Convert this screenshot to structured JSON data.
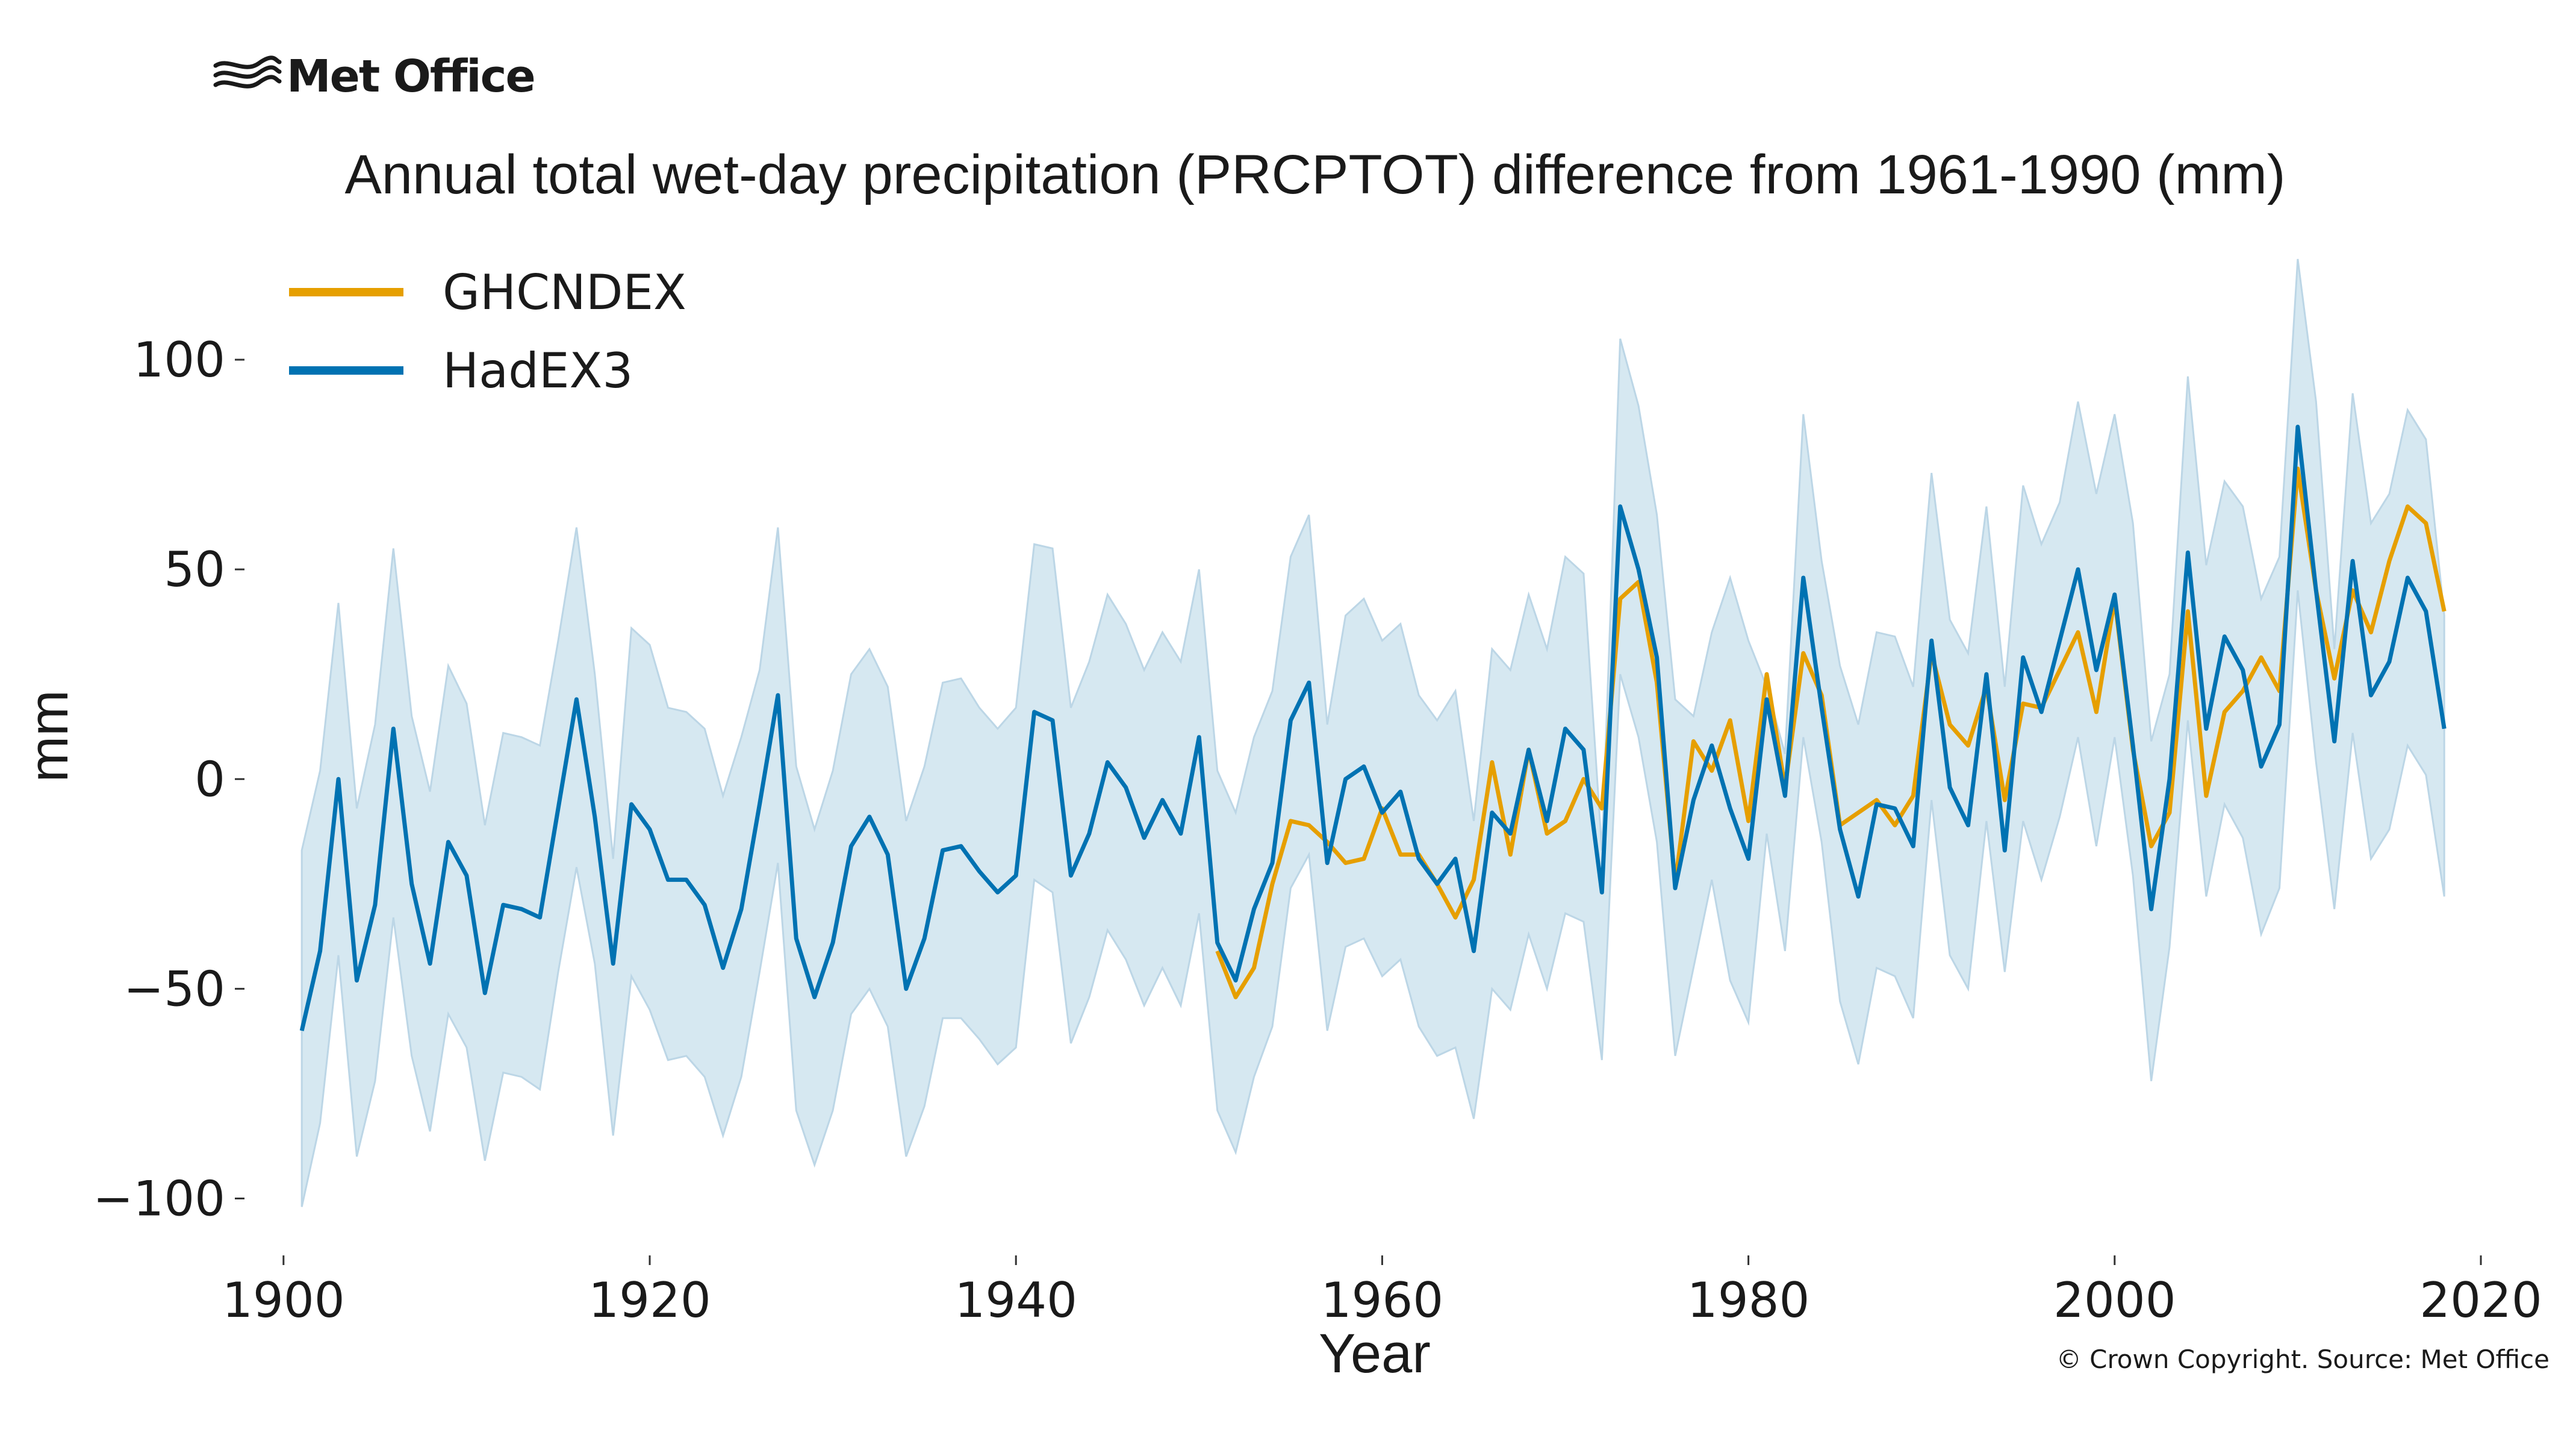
{
  "brand": {
    "name": "Met Office",
    "logo_icon": "met-office-waves-icon"
  },
  "copyright": "© Crown Copyright. Source: Met Office",
  "colors": {
    "ghcndex": "#e69f00",
    "hadex3": "#0072b2",
    "band": "#d6e8f1",
    "band_edge": "#bcd6e6"
  },
  "chart_data": {
    "type": "line",
    "title": "Annual total wet-day precipitation (PRCPTOT) difference from 1961-1990 (mm)",
    "xlabel": "Year",
    "ylabel": "mm",
    "xlim": [
      1898,
      2020
    ],
    "ylim": [
      -113,
      124
    ],
    "xticks": [
      1900,
      1920,
      1940,
      1960,
      1980,
      2000,
      2020
    ],
    "xtick_labels": [
      "1900",
      "1920",
      "1940",
      "1960",
      "1980",
      "2000",
      "2020"
    ],
    "yticks": [
      100,
      50,
      0,
      -50,
      -100
    ],
    "ytick_labels": [
      "100",
      "50",
      "0",
      "−50",
      "−100"
    ],
    "legend_position": "top-left",
    "grid": false,
    "uncertainty_band": {
      "series": "HadEX3",
      "x": [
        1901,
        1902,
        1903,
        1904,
        1905,
        1906,
        1907,
        1908,
        1909,
        1910,
        1911,
        1912,
        1913,
        1914,
        1915,
        1916,
        1917,
        1918,
        1919,
        1920,
        1921,
        1922,
        1923,
        1924,
        1925,
        1926,
        1927,
        1928,
        1929,
        1930,
        1931,
        1932,
        1933,
        1934,
        1935,
        1936,
        1937,
        1938,
        1939,
        1940,
        1941,
        1942,
        1943,
        1944,
        1945,
        1946,
        1947,
        1948,
        1949,
        1950,
        1951,
        1952,
        1953,
        1954,
        1955,
        1956,
        1957,
        1958,
        1959,
        1960,
        1961,
        1962,
        1963,
        1964,
        1965,
        1966,
        1967,
        1968,
        1969,
        1970,
        1971,
        1972,
        1973,
        1974,
        1975,
        1976,
        1977,
        1978,
        1979,
        1980,
        1981,
        1982,
        1983,
        1984,
        1985,
        1986,
        1987,
        1988,
        1989,
        1990,
        1991,
        1992,
        1993,
        1994,
        1995,
        1996,
        1997,
        1998,
        1999,
        2000,
        2001,
        2002,
        2003,
        2004,
        2005,
        2006,
        2007,
        2008,
        2009,
        2010,
        2011,
        2012,
        2013,
        2014,
        2015,
        2016,
        2017,
        2018
      ],
      "upper": [
        -17,
        2,
        42,
        -7,
        13,
        55,
        15,
        -3,
        27,
        18,
        -11,
        11,
        10,
        8,
        33,
        60,
        25,
        -19,
        36,
        32,
        17,
        16,
        12,
        -4,
        10,
        26,
        60,
        3,
        -12,
        2,
        25,
        31,
        22,
        -10,
        3,
        23,
        24,
        17,
        12,
        17,
        56,
        55,
        17,
        28,
        44,
        37,
        26,
        35,
        28,
        50,
        2,
        -8,
        10,
        21,
        53,
        63,
        13,
        39,
        43,
        33,
        37,
        20,
        14,
        21,
        -10,
        31,
        26,
        44,
        31,
        53,
        49,
        -17,
        105,
        89,
        63,
        19,
        15,
        35,
        48,
        33,
        22,
        6,
        87,
        52,
        27,
        13,
        35,
        34,
        22,
        73,
        38,
        30,
        65,
        22,
        70,
        56,
        66,
        90,
        68,
        87,
        61,
        9,
        25,
        96,
        51,
        71,
        65,
        43,
        53,
        124,
        90,
        31,
        92,
        61,
        68,
        88,
        81,
        39
      ],
      "lower": [
        -102,
        -82,
        -42,
        -90,
        -72,
        -33,
        -66,
        -84,
        -56,
        -64,
        -91,
        -70,
        -71,
        -74,
        -46,
        -21,
        -44,
        -85,
        -47,
        -55,
        -67,
        -66,
        -71,
        -85,
        -71,
        -46,
        -20,
        -79,
        -92,
        -79,
        -56,
        -50,
        -59,
        -90,
        -78,
        -57,
        -57,
        -62,
        -68,
        -64,
        -24,
        -27,
        -63,
        -52,
        -36,
        -43,
        -54,
        -45,
        -54,
        -32,
        -79,
        -89,
        -71,
        -59,
        -26,
        -18,
        -60,
        -40,
        -38,
        -47,
        -43,
        -59,
        -66,
        -64,
        -81,
        -50,
        -55,
        -37,
        -50,
        -32,
        -34,
        -67,
        25,
        10,
        -15,
        -66,
        -45,
        -24,
        -48,
        -58,
        -13,
        -41,
        10,
        -15,
        -53,
        -68,
        -45,
        -47,
        -57,
        -5,
        -42,
        -50,
        -10,
        -46,
        -10,
        -24,
        -9,
        10,
        -16,
        10,
        -23,
        -72,
        -40,
        14,
        -28,
        -6,
        -14,
        -37,
        -26,
        45,
        4,
        -31,
        11,
        -19,
        -12,
        8,
        1,
        -28
      ]
    },
    "series": [
      {
        "name": "GHCNDEX",
        "color": "#e69f00",
        "x": [
          1951,
          1952,
          1953,
          1954,
          1955,
          1956,
          1957,
          1958,
          1959,
          1960,
          1961,
          1962,
          1963,
          1964,
          1965,
          1966,
          1967,
          1968,
          1969,
          1970,
          1971,
          1972,
          1973,
          1974,
          1975,
          1976,
          1977,
          1978,
          1979,
          1980,
          1981,
          1982,
          1983,
          1984,
          1985,
          1986,
          1987,
          1988,
          1989,
          1990,
          1991,
          1992,
          1993,
          1994,
          1995,
          1996,
          1997,
          1998,
          1999,
          2000,
          2001,
          2002,
          2003,
          2004,
          2005,
          2006,
          2007,
          2008,
          2009,
          2010,
          2011,
          2012,
          2013,
          2014,
          2015,
          2016,
          2017,
          2018
        ],
        "values": [
          -41,
          -52,
          -45,
          -25,
          -10,
          -11,
          -15,
          -20,
          -19,
          -7,
          -18,
          -18,
          -25,
          -33,
          -24,
          4,
          -18,
          7,
          -13,
          -10,
          0,
          -7,
          43,
          47,
          23,
          -25,
          9,
          2,
          14,
          -10,
          25,
          -2,
          30,
          20,
          -11,
          -8,
          -5,
          -11,
          -4,
          30,
          13,
          8,
          22,
          -5,
          18,
          17,
          26,
          35,
          16,
          43,
          7,
          -16,
          -8,
          40,
          -4,
          16,
          21,
          29,
          21,
          74,
          45,
          24,
          45,
          35,
          52,
          65,
          61,
          40
        ]
      },
      {
        "name": "HadEX3",
        "color": "#0072b2",
        "x": [
          1901,
          1902,
          1903,
          1904,
          1905,
          1906,
          1907,
          1908,
          1909,
          1910,
          1911,
          1912,
          1913,
          1914,
          1915,
          1916,
          1917,
          1918,
          1919,
          1920,
          1921,
          1922,
          1923,
          1924,
          1925,
          1926,
          1927,
          1928,
          1929,
          1930,
          1931,
          1932,
          1933,
          1934,
          1935,
          1936,
          1937,
          1938,
          1939,
          1940,
          1941,
          1942,
          1943,
          1944,
          1945,
          1946,
          1947,
          1948,
          1949,
          1950,
          1951,
          1952,
          1953,
          1954,
          1955,
          1956,
          1957,
          1958,
          1959,
          1960,
          1961,
          1962,
          1963,
          1964,
          1965,
          1966,
          1967,
          1968,
          1969,
          1970,
          1971,
          1972,
          1973,
          1974,
          1975,
          1976,
          1977,
          1978,
          1979,
          1980,
          1981,
          1982,
          1983,
          1984,
          1985,
          1986,
          1987,
          1988,
          1989,
          1990,
          1991,
          1992,
          1993,
          1994,
          1995,
          1996,
          1997,
          1998,
          1999,
          2000,
          2001,
          2002,
          2003,
          2004,
          2005,
          2006,
          2007,
          2008,
          2009,
          2010,
          2011,
          2012,
          2013,
          2014,
          2015,
          2016,
          2017,
          2018
        ],
        "values": [
          -60,
          -41,
          0,
          -48,
          -30,
          12,
          -25,
          -44,
          -15,
          -23,
          -51,
          -30,
          -31,
          -33,
          -7,
          19,
          -9,
          -44,
          -6,
          -12,
          -24,
          -24,
          -30,
          -45,
          -31,
          -6,
          20,
          -38,
          -52,
          -39,
          -16,
          -9,
          -18,
          -50,
          -38,
          -17,
          -16,
          -22,
          -27,
          -23,
          16,
          14,
          -23,
          -13,
          4,
          -2,
          -14,
          -5,
          -13,
          10,
          -39,
          -48,
          -31,
          -20,
          14,
          23,
          -20,
          0,
          3,
          -8,
          -3,
          -19,
          -25,
          -19,
          -41,
          -8,
          -13,
          7,
          -10,
          12,
          7,
          -27,
          65,
          50,
          29,
          -26,
          -5,
          8,
          -7,
          -19,
          19,
          -4,
          48,
          17,
          -12,
          -28,
          -6,
          -7,
          -16,
          33,
          -2,
          -11,
          25,
          -17,
          29,
          16,
          33,
          50,
          26,
          44,
          8,
          -31,
          0,
          54,
          12,
          34,
          26,
          3,
          13,
          84,
          45,
          9,
          52,
          20,
          28,
          48,
          40,
          12
        ]
      }
    ]
  }
}
